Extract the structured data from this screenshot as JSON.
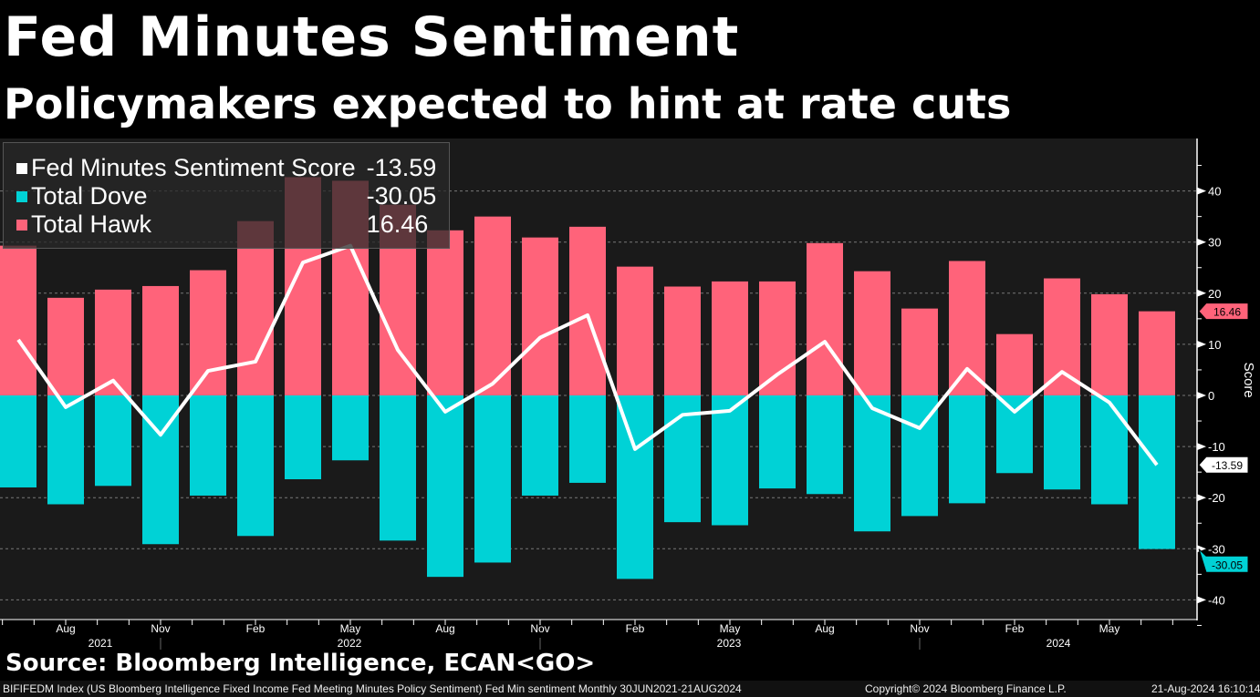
{
  "header": {
    "title": "Fed Minutes Sentiment",
    "subtitle": "Policymakers expected to hint at rate cuts"
  },
  "legend": [
    {
      "label": "Fed Minutes Sentiment Score",
      "value": "-13.59",
      "color": "#ffffff"
    },
    {
      "label": "Total Dove",
      "value": "-30.05",
      "color": "#00d2d6"
    },
    {
      "label": "Total Hawk",
      "value": "16.46",
      "color": "#ff637a"
    }
  ],
  "source": "Source: Bloomberg Intelligence, ECAN<GO>",
  "footer": {
    "description": "BIFIFEDM Index (US Bloomberg Intelligence Fixed Income Fed Meeting Minutes Policy Sentiment) Fed Min sentiment  Monthly 30JUN2021-21AUG2024",
    "copyright": "Copyright© 2024 Bloomberg Finance L.P.",
    "timestamp": "21-Aug-2024 16:10:14"
  },
  "chart_data": {
    "type": "bar",
    "ylabel": "Score",
    "ylim": [
      -40,
      45
    ],
    "yticks": [
      40,
      30,
      20,
      10,
      0,
      -10,
      -20,
      -30,
      -40
    ],
    "grid": true,
    "legend_placement": "top-left",
    "x_tick_labels": [
      "Aug",
      "Nov",
      "Feb",
      "May",
      "Aug",
      "Nov",
      "Feb",
      "May",
      "Aug",
      "Nov",
      "Feb",
      "May"
    ],
    "x_year_labels": [
      "2021",
      "2022",
      "2023",
      "2024"
    ],
    "series": [
      {
        "name": "Total Hawk",
        "kind": "bar",
        "color": "#ff637a",
        "values": [
          29.3,
          19.1,
          20.7,
          21.4,
          24.5,
          34.1,
          42.7,
          42.0,
          37.3,
          32.3,
          35.0,
          30.9,
          33.0,
          25.2,
          21.3,
          22.3,
          22.3,
          29.8,
          24.3,
          17.0,
          26.3,
          12.0,
          22.9,
          19.8,
          16.46
        ]
      },
      {
        "name": "Total Dove",
        "kind": "bar",
        "color": "#00d2d6",
        "values": [
          -18.0,
          -21.3,
          -17.7,
          -29.1,
          -19.6,
          -27.5,
          -16.4,
          -12.7,
          -28.4,
          -35.5,
          -32.7,
          -19.6,
          -17.1,
          -35.9,
          -24.8,
          -25.4,
          -18.2,
          -19.3,
          -26.6,
          -23.6,
          -21.1,
          -15.2,
          -18.4,
          -21.3,
          -30.05
        ]
      },
      {
        "name": "Fed Minutes Sentiment Score",
        "kind": "line",
        "color": "#ffffff",
        "values": [
          10.9,
          -2.3,
          2.9,
          -7.7,
          4.8,
          6.6,
          26.0,
          29.3,
          8.9,
          -3.2,
          2.3,
          11.3,
          15.7,
          -10.5,
          -3.8,
          -3.0,
          4.1,
          10.5,
          -2.5,
          -6.4,
          5.2,
          -3.2,
          4.6,
          -1.4,
          -13.59
        ]
      }
    ],
    "last_value_labels": [
      "16.46",
      "-13.59",
      "-30.05"
    ]
  }
}
